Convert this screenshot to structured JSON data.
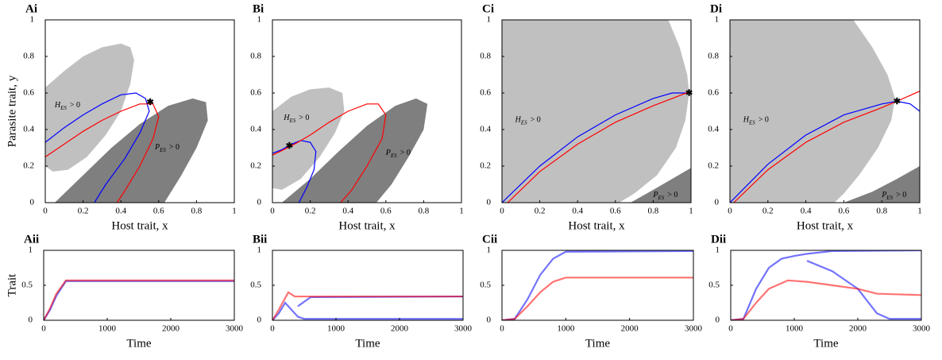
{
  "chart_data": [
    {
      "type": "region",
      "title": "Ai",
      "xlabel": "Host trait, x",
      "ylabel": "Parasite trait, y",
      "xlim": [
        0,
        1
      ],
      "ylim": [
        0,
        1
      ],
      "xticks": [
        0,
        0.2,
        0.4,
        0.6,
        0.8,
        1
      ],
      "yticks": [
        0,
        0.2,
        0.4,
        0.6,
        0.8,
        1
      ],
      "regions": [
        {
          "color": "#c0c0c0",
          "x": [
            0,
            0,
            0.1,
            0.2,
            0.3,
            0.4,
            0.45,
            0.47,
            0.45,
            0.4,
            0.32,
            0.22,
            0.12,
            0.04,
            0
          ],
          "y": [
            0.22,
            0.63,
            0.72,
            0.8,
            0.85,
            0.87,
            0.85,
            0.78,
            0.65,
            0.5,
            0.37,
            0.25,
            0.18,
            0.17,
            0.2
          ]
        },
        {
          "color": "#7f7f7f",
          "x": [
            0.05,
            0.2,
            0.35,
            0.5,
            0.65,
            0.78,
            0.85,
            0.86,
            0.8,
            0.72,
            0.63
          ],
          "y": [
            0,
            0.15,
            0.3,
            0.43,
            0.53,
            0.57,
            0.55,
            0.45,
            0.3,
            0.15,
            0
          ]
        }
      ],
      "series": [
        {
          "color": "#0000ff",
          "x": [
            0,
            0.1,
            0.2,
            0.3,
            0.4,
            0.48,
            0.53,
            0.55,
            0.5,
            0.42,
            0.32,
            0.26
          ],
          "y": [
            0.33,
            0.41,
            0.48,
            0.54,
            0.59,
            0.6,
            0.57,
            0.5,
            0.38,
            0.24,
            0.1,
            0
          ]
        },
        {
          "color": "#ff0000",
          "x": [
            0,
            0.1,
            0.2,
            0.3,
            0.4,
            0.5,
            0.57,
            0.6,
            0.57,
            0.5,
            0.43,
            0.38
          ],
          "y": [
            0.25,
            0.32,
            0.39,
            0.45,
            0.5,
            0.54,
            0.54,
            0.47,
            0.35,
            0.2,
            0.08,
            0
          ]
        }
      ],
      "marker": {
        "x": 0.555,
        "y": 0.55
      },
      "annotations": [
        {
          "text": "H",
          "subscript": "ES",
          "suffix": "> 0",
          "x": 0.05,
          "y": 0.53
        },
        {
          "text": "P",
          "subscript": "ES",
          "suffix": "> 0",
          "x": 0.58,
          "y": 0.3
        }
      ]
    },
    {
      "type": "region",
      "title": "Bi",
      "xlabel": "Host trait, x",
      "xlim": [
        0,
        1
      ],
      "ylim": [
        0,
        1
      ],
      "xticks": [
        0,
        0.2,
        0.4,
        0.6,
        0.8,
        1
      ],
      "yticks": [
        0,
        0.2,
        0.4,
        0.6,
        0.8,
        1
      ],
      "regions": [
        {
          "color": "#c0c0c0",
          "x": [
            0,
            0,
            0.1,
            0.2,
            0.3,
            0.37,
            0.38,
            0.33,
            0.25,
            0.15,
            0.05,
            0
          ],
          "y": [
            0.23,
            0.5,
            0.58,
            0.62,
            0.63,
            0.6,
            0.5,
            0.38,
            0.25,
            0.13,
            0.07,
            0.08
          ]
        },
        {
          "color": "#7f7f7f",
          "x": [
            0.05,
            0.2,
            0.35,
            0.5,
            0.65,
            0.76,
            0.82,
            0.8,
            0.72,
            0.63,
            0.55
          ],
          "y": [
            0,
            0.13,
            0.28,
            0.42,
            0.53,
            0.57,
            0.54,
            0.4,
            0.25,
            0.1,
            0
          ]
        }
      ],
      "series": [
        {
          "color": "#0000ff",
          "x": [
            0,
            0.05,
            0.1,
            0.15,
            0.2,
            0.23,
            0.22,
            0.18,
            0.14
          ],
          "y": [
            0.27,
            0.29,
            0.32,
            0.34,
            0.33,
            0.28,
            0.18,
            0.08,
            0
          ]
        },
        {
          "color": "#ff0000",
          "x": [
            0,
            0.1,
            0.2,
            0.3,
            0.4,
            0.5,
            0.56,
            0.6,
            0.58,
            0.5,
            0.42,
            0.36
          ],
          "y": [
            0.26,
            0.31,
            0.37,
            0.44,
            0.5,
            0.54,
            0.54,
            0.48,
            0.35,
            0.2,
            0.07,
            0
          ]
        }
      ],
      "marker": {
        "x": 0.09,
        "y": 0.31
      },
      "annotations": [
        {
          "text": "H",
          "subscript": "ES",
          "suffix": "> 0",
          "x": 0.06,
          "y": 0.46
        },
        {
          "text": "P",
          "subscript": "ES",
          "suffix": "> 0",
          "x": 0.6,
          "y": 0.27
        }
      ]
    },
    {
      "type": "region",
      "title": "Ci",
      "xlabel": "Host trait, x",
      "xlim": [
        0,
        1
      ],
      "ylim": [
        0,
        1
      ],
      "xticks": [
        0,
        0.2,
        0.4,
        0.6,
        0.8,
        1
      ],
      "yticks": [
        0,
        0.2,
        0.4,
        0.6,
        0.8,
        1
      ],
      "regions": [
        {
          "color": "#c0c0c0",
          "x": [
            0,
            0,
            0.88,
            0.94,
            0.98,
            0.99,
            0.97,
            0.92,
            0.82,
            0.7,
            0.62
          ],
          "y": [
            0,
            1,
            1,
            0.85,
            0.7,
            0.6,
            0.45,
            0.3,
            0.15,
            0.05,
            0
          ]
        },
        {
          "color": "#7f7f7f",
          "x": [
            0.68,
            0.8,
            0.9,
            1,
            1
          ],
          "y": [
            0,
            0.07,
            0.13,
            0.19,
            0
          ]
        }
      ],
      "series": [
        {
          "color": "#0000ff",
          "x": [
            0,
            0.2,
            0.4,
            0.6,
            0.8,
            0.9,
            1
          ],
          "y": [
            0,
            0.2,
            0.36,
            0.48,
            0.57,
            0.6,
            0.6
          ]
        },
        {
          "color": "#ff0000",
          "x": [
            0.03,
            0.2,
            0.4,
            0.6,
            0.8,
            0.9,
            1
          ],
          "y": [
            0,
            0.17,
            0.32,
            0.44,
            0.53,
            0.57,
            0.61
          ]
        }
      ],
      "marker": {
        "x": 0.99,
        "y": 0.6
      },
      "annotations": [
        {
          "text": "H",
          "subscript": "ES",
          "suffix": "> 0",
          "x": 0.07,
          "y": 0.45
        },
        {
          "text": "P",
          "subscript": "ES",
          "suffix": "> 0",
          "x": 0.8,
          "y": 0.04
        }
      ]
    },
    {
      "type": "region",
      "title": "Di",
      "xlabel": "Host trait, x",
      "xlim": [
        0,
        1
      ],
      "ylim": [
        0,
        1
      ],
      "xticks": [
        0,
        0.2,
        0.4,
        0.6,
        0.8,
        1
      ],
      "yticks": [
        0,
        0.2,
        0.4,
        0.6,
        0.8,
        1
      ],
      "regions": [
        {
          "color": "#c0c0c0",
          "x": [
            0,
            0,
            0.65,
            0.75,
            0.83,
            0.87,
            0.85,
            0.78,
            0.68,
            0.6,
            0.55
          ],
          "y": [
            0,
            1,
            1,
            0.85,
            0.7,
            0.57,
            0.45,
            0.3,
            0.15,
            0.05,
            0
          ]
        },
        {
          "color": "#7f7f7f",
          "x": [
            0.6,
            0.75,
            0.88,
            1,
            1
          ],
          "y": [
            0,
            0.06,
            0.13,
            0.2,
            0
          ]
        }
      ],
      "series": [
        {
          "color": "#0000ff",
          "x": [
            0,
            0.2,
            0.4,
            0.6,
            0.8,
            0.88,
            0.95,
            1
          ],
          "y": [
            0,
            0.21,
            0.37,
            0.48,
            0.54,
            0.555,
            0.54,
            0.5
          ]
        },
        {
          "color": "#ff0000",
          "x": [
            0.02,
            0.2,
            0.4,
            0.6,
            0.8,
            0.88,
            1
          ],
          "y": [
            0,
            0.18,
            0.33,
            0.44,
            0.52,
            0.555,
            0.61
          ]
        }
      ],
      "marker": {
        "x": 0.88,
        "y": 0.555
      },
      "annotations": [
        {
          "text": "H",
          "subscript": "ES",
          "suffix": "> 0",
          "x": 0.07,
          "y": 0.45
        },
        {
          "text": "P",
          "subscript": "ES",
          "suffix": "> 0",
          "x": 0.8,
          "y": 0.04
        }
      ]
    },
    {
      "type": "line",
      "title": "Aii",
      "xlabel": "Time",
      "ylabel": "Trait",
      "xlim": [
        0,
        3000
      ],
      "ylim": [
        0,
        1
      ],
      "xticks": [
        0,
        1000,
        2000,
        3000
      ],
      "yticks": [
        0,
        0.5,
        1
      ],
      "series": [
        {
          "color": "#0000ff",
          "x": [
            0,
            100,
            200,
            350,
            3000
          ],
          "y": [
            0,
            0.15,
            0.35,
            0.56,
            0.56
          ]
        },
        {
          "color": "#ff0000",
          "x": [
            0,
            100,
            200,
            350,
            3000
          ],
          "y": [
            0,
            0.17,
            0.38,
            0.57,
            0.57
          ]
        }
      ]
    },
    {
      "type": "line",
      "title": "Bii",
      "xlabel": "Time",
      "xlim": [
        0,
        3000
      ],
      "ylim": [
        0,
        1
      ],
      "xticks": [
        0,
        1000,
        2000,
        3000
      ],
      "yticks": [
        0,
        0.5,
        1
      ],
      "series": [
        {
          "color": "#0000ff",
          "x": [
            0,
            100,
            200,
            300,
            400,
            500,
            3000,
            null,
            400,
            600,
            3000
          ],
          "y": [
            0,
            0.1,
            0.25,
            0.15,
            0.05,
            0.02,
            0.02,
            null,
            0.2,
            0.33,
            0.34
          ]
        },
        {
          "color": "#ff0000",
          "x": [
            0,
            100,
            250,
            350,
            3000
          ],
          "y": [
            0,
            0.15,
            0.4,
            0.34,
            0.34
          ]
        }
      ]
    },
    {
      "type": "line",
      "title": "Cii",
      "xlabel": "Time",
      "xlim": [
        0,
        3000
      ],
      "ylim": [
        0,
        1
      ],
      "xticks": [
        0,
        1000,
        2000,
        3000
      ],
      "yticks": [
        0,
        0.5,
        1
      ],
      "series": [
        {
          "color": "#0000ff",
          "x": [
            0,
            200,
            400,
            600,
            800,
            1000,
            3000
          ],
          "y": [
            0,
            0.02,
            0.3,
            0.65,
            0.88,
            0.98,
            0.99
          ]
        },
        {
          "color": "#ff0000",
          "x": [
            0,
            200,
            400,
            600,
            800,
            1000,
            3000
          ],
          "y": [
            0,
            0.02,
            0.2,
            0.4,
            0.55,
            0.61,
            0.61
          ]
        }
      ]
    },
    {
      "type": "line",
      "title": "Dii",
      "xlabel": "Time",
      "xlim": [
        0,
        3000
      ],
      "ylim": [
        0,
        1
      ],
      "xticks": [
        0,
        1000,
        2000,
        3000
      ],
      "yticks": [
        0,
        0.5,
        1
      ],
      "series": [
        {
          "color": "#0000ff",
          "x": [
            0,
            200,
            400,
            600,
            800,
            1000,
            1200,
            1600,
            3000,
            null,
            1200,
            1600,
            2000,
            2300,
            2500,
            3000
          ],
          "y": [
            0,
            0.02,
            0.45,
            0.75,
            0.88,
            0.92,
            0.95,
            0.99,
            1,
            null,
            0.85,
            0.7,
            0.45,
            0.1,
            0.02,
            0.02
          ]
        },
        {
          "color": "#ff0000",
          "x": [
            0,
            200,
            400,
            600,
            900,
            1200,
            1600,
            2000,
            2300,
            3000
          ],
          "y": [
            0,
            0.02,
            0.25,
            0.45,
            0.57,
            0.55,
            0.5,
            0.45,
            0.38,
            0.36
          ]
        }
      ]
    }
  ]
}
